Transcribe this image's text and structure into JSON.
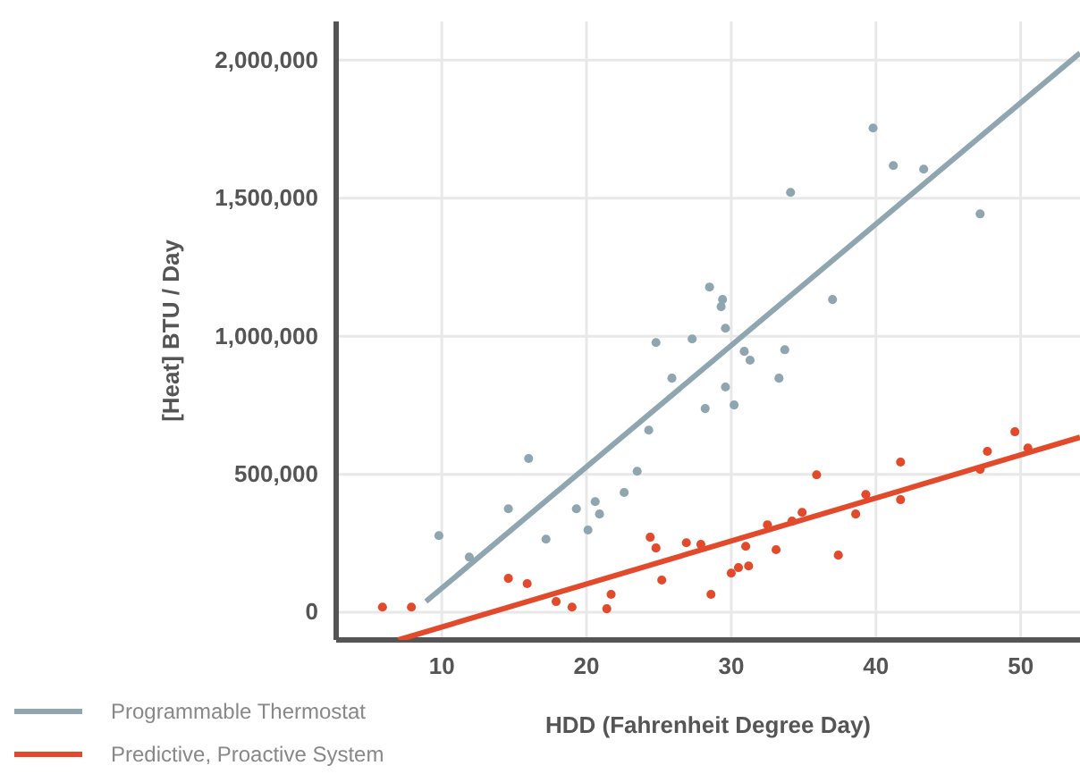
{
  "chart_data": {
    "type": "scatter",
    "xlabel": "HDD (Fahrenheit Degree Day)",
    "ylabel": "[Heat] BTU / Day",
    "xlim": [
      2.7,
      54.1
    ],
    "ylim": [
      -100000,
      2140000
    ],
    "xticks": [
      10,
      20,
      30,
      40,
      50
    ],
    "yticks": [
      {
        "value": 0,
        "label": "0"
      },
      {
        "value": 500000,
        "label": "500,000"
      },
      {
        "value": 1000000,
        "label": "1,000,000"
      },
      {
        "value": 1500000,
        "label": "1,500,000"
      },
      {
        "value": 2000000,
        "label": "2,000,000"
      }
    ],
    "grid": true,
    "legend": "bottom left",
    "marker": "circle",
    "series": [
      {
        "color": "#8fa5b0",
        "x": [
          9.8,
          11.9,
          14.6,
          16.0,
          17.2,
          19.3,
          20.1,
          20.6,
          20.9,
          22.6,
          23.5,
          24.3,
          24.8,
          25.9,
          27.3,
          28.2,
          28.5,
          29.3,
          29.4,
          29.6,
          29.6,
          30.2,
          30.9,
          31.3,
          33.3,
          33.7,
          34.1,
          37.0,
          39.8,
          41.2,
          43.3,
          47.2
        ],
        "values": [
          278000,
          200000,
          375000,
          557000,
          265000,
          375000,
          298000,
          401000,
          356000,
          434000,
          511000,
          660000,
          977000,
          848000,
          990000,
          738000,
          1178000,
          1107000,
          1133000,
          1029000,
          816000,
          751000,
          945000,
          913000,
          848000,
          951000,
          1521000,
          1133000,
          1754000,
          1618000,
          1605000,
          1443000
        ]
      },
      {
        "color": "#e3492b",
        "x": [
          5.9,
          7.9,
          14.6,
          15.9,
          17.9,
          19.0,
          21.4,
          21.7,
          24.4,
          24.8,
          25.2,
          26.9,
          27.9,
          28.6,
          30.0,
          30.5,
          31.0,
          31.2,
          32.5,
          33.1,
          34.2,
          34.9,
          35.9,
          37.4,
          38.6,
          39.3,
          41.7,
          41.7,
          47.2,
          47.7,
          49.6,
          50.5
        ],
        "values": [
          19000,
          19000,
          123000,
          104000,
          39000,
          19000,
          13000,
          65000,
          272000,
          233000,
          117000,
          252000,
          246000,
          65000,
          142000,
          162000,
          239000,
          168000,
          317000,
          227000,
          330000,
          362000,
          498000,
          207000,
          356000,
          427000,
          544000,
          408000,
          518000,
          583000,
          654000,
          595000
        ]
      },
      {
        "type": "line",
        "name": "Programmable Thermostat",
        "color": "#8fa5b0",
        "line_style": "solid",
        "marker": "none",
        "x": [
          8.9,
          54.1
        ],
        "values": [
          39000,
          2026000
        ]
      },
      {
        "type": "line",
        "name": "Predictive, Proactive System",
        "color": "#e3492b",
        "line_style": "solid",
        "marker": "none",
        "x": [
          7.0,
          54.1
        ],
        "values": [
          -100000,
          634000
        ]
      }
    ]
  }
}
